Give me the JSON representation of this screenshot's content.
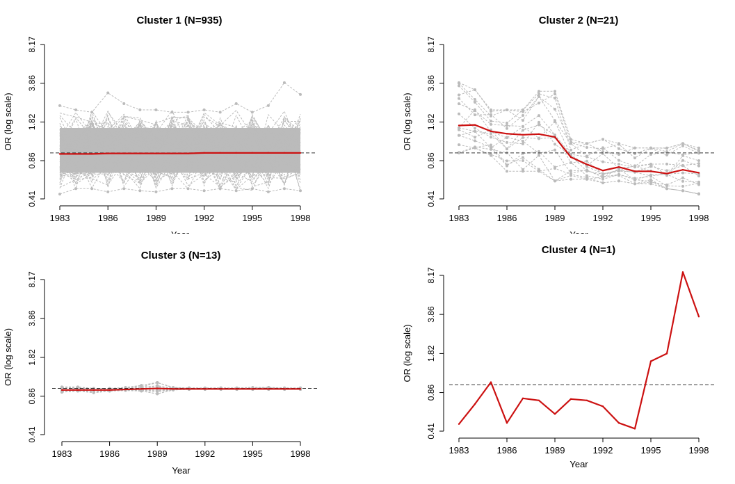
{
  "chart_data": [
    {
      "type": "line",
      "title": "Cluster 1 (N=935)",
      "xlabel": "Year",
      "ylabel": "OR (log scale)",
      "y_scale": "log",
      "ylim": [
        0.41,
        8.17
      ],
      "xlim": [
        1983,
        1998
      ],
      "x_ticks": [
        1983,
        1986,
        1989,
        1992,
        1995,
        1998
      ],
      "y_ticks": [
        "0.41",
        "0.86",
        "1.82",
        "3.86",
        "8.17"
      ],
      "reference_line": 1,
      "colors": {
        "mean": "#cc1111",
        "members": "#bbbbbb",
        "reference": "#333333"
      },
      "x": [
        1983,
        1984,
        1985,
        1986,
        1987,
        1988,
        1989,
        1990,
        1991,
        1992,
        1993,
        1994,
        1995,
        1996,
        1997,
        1998
      ],
      "member_band": {
        "inner_low": 0.68,
        "inner_high": 1.62,
        "outer_low": 0.47,
        "outer_high": 2.35
      },
      "member_max": [
        2.5,
        2.3,
        2.2,
        3.2,
        2.6,
        2.3,
        2.3,
        2.2,
        2.2,
        2.3,
        2.2,
        2.6,
        2.2,
        2.5,
        3.9,
        3.1
      ],
      "member_min": [
        0.45,
        0.5,
        0.5,
        0.47,
        0.5,
        0.48,
        0.47,
        0.5,
        0.5,
        0.48,
        0.5,
        0.48,
        0.5,
        0.47,
        0.5,
        0.48
      ],
      "series": [
        {
          "name": "",
          "values": [
            0.98,
            0.98,
            0.98,
            0.99,
            0.99,
            0.99,
            0.99,
            0.99,
            0.99,
            1.0,
            1.0,
            1.0,
            1.0,
            1.0,
            1.0,
            1.0
          ]
        }
      ]
    },
    {
      "type": "line",
      "title": "Cluster 2 (N=21)",
      "xlabel": "Year",
      "ylabel": "OR (log scale)",
      "y_scale": "log",
      "ylim": [
        0.41,
        8.17
      ],
      "xlim": [
        1983,
        1998
      ],
      "x_ticks": [
        1983,
        1986,
        1989,
        1992,
        1995,
        1998
      ],
      "y_ticks": [
        "0.41",
        "0.86",
        "1.82",
        "3.86",
        "8.17"
      ],
      "reference_line": 1,
      "colors": {
        "mean": "#cc1111",
        "members": "#bbbbbb",
        "reference": "#333333"
      },
      "x": [
        1983,
        1984,
        1985,
        1986,
        1987,
        1988,
        1989,
        1990,
        1991,
        1992,
        1993,
        1994,
        1995,
        1996,
        1997,
        1998
      ],
      "member_max": [
        3.9,
        3.4,
        2.3,
        2.3,
        2.3,
        3.3,
        3.3,
        1.3,
        1.2,
        1.3,
        1.2,
        1.1,
        1.1,
        1.1,
        1.2,
        1.1
      ],
      "member_min": [
        1.0,
        1.1,
        0.95,
        0.7,
        0.7,
        0.7,
        0.58,
        0.6,
        0.6,
        0.56,
        0.58,
        0.55,
        0.55,
        0.5,
        0.48,
        0.45
      ],
      "series": [
        {
          "name": "",
          "values": [
            1.7,
            1.72,
            1.52,
            1.45,
            1.42,
            1.44,
            1.36,
            0.92,
            0.8,
            0.71,
            0.76,
            0.7,
            0.7,
            0.67,
            0.72,
            0.68
          ]
        }
      ]
    },
    {
      "type": "line",
      "title": "Cluster 3 (N=13)",
      "xlabel": "Year",
      "ylabel": "OR (log scale)",
      "y_scale": "log",
      "ylim": [
        0.41,
        8.17
      ],
      "xlim": [
        1983,
        1998
      ],
      "x_ticks": [
        1983,
        1986,
        1989,
        1992,
        1995,
        1998
      ],
      "y_ticks": [
        "0.41",
        "0.86",
        "1.82",
        "3.86",
        "8.17"
      ],
      "reference_line": 1,
      "colors": {
        "mean": "#cc1111",
        "members": "#bbbbbb",
        "reference": "#333333"
      },
      "x": [
        1983,
        1984,
        1985,
        1986,
        1987,
        1988,
        1989,
        1990,
        1991,
        1992,
        1993,
        1994,
        1995,
        1996,
        1997,
        1998
      ],
      "member_max": [
        1.03,
        1.03,
        1.0,
        1.0,
        1.02,
        1.06,
        1.12,
        1.02,
        1.01,
        1.01,
        1.01,
        1.01,
        1.02,
        1.02,
        1.01,
        1.01
      ],
      "member_min": [
        0.93,
        0.95,
        0.92,
        0.95,
        0.96,
        0.95,
        0.9,
        0.97,
        0.98,
        0.98,
        0.98,
        0.98,
        0.98,
        0.98,
        0.98,
        0.98
      ],
      "series": [
        {
          "name": "",
          "values": [
            0.97,
            0.97,
            0.97,
            0.97,
            0.98,
            0.99,
            1.0,
            0.99,
            0.99,
            0.99,
            0.99,
            0.99,
            0.99,
            0.99,
            0.99,
            0.99
          ]
        }
      ]
    },
    {
      "type": "line",
      "title": "Cluster 4 (N=1)",
      "xlabel": "Year",
      "ylabel": "OR (log scale)",
      "y_scale": "log",
      "ylim": [
        0.41,
        8.17
      ],
      "xlim": [
        1983,
        1998
      ],
      "x_ticks": [
        1983,
        1986,
        1989,
        1992,
        1995,
        1998
      ],
      "y_ticks": [
        "0.41",
        "0.86",
        "1.82",
        "3.86",
        "8.17"
      ],
      "reference_line": 1,
      "colors": {
        "mean": "#cc1111",
        "members": "#bbbbbb",
        "reference": "#333333"
      },
      "x": [
        1983,
        1984,
        1985,
        1986,
        1987,
        1988,
        1989,
        1990,
        1991,
        1992,
        1993,
        1994,
        1995,
        1996,
        1997,
        1998
      ],
      "series": [
        {
          "name": "",
          "values": [
            0.47,
            0.69,
            1.05,
            0.48,
            0.77,
            0.74,
            0.57,
            0.76,
            0.74,
            0.66,
            0.48,
            0.43,
            1.57,
            1.82,
            8.7,
            3.7
          ]
        }
      ]
    }
  ]
}
